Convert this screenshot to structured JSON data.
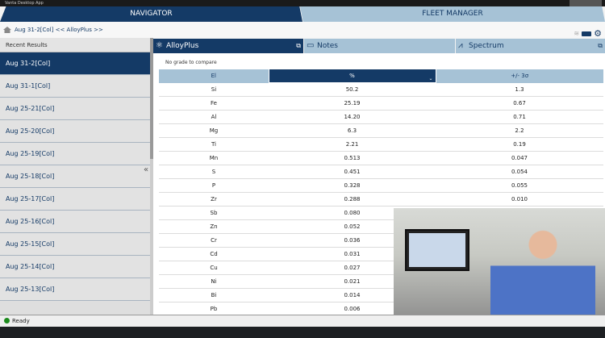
{
  "window": {
    "title": "Vanta Desktop App"
  },
  "tabs": {
    "navigator": "NAVIGATOR",
    "fleet_manager": "FLEET MANAGER"
  },
  "breadcrumb": "Aug 31-2[Col] << AlloyPlus >>",
  "sidebar": {
    "header": "Recent Results",
    "items": [
      "Aug 31-2[Col]",
      "Aug 31-1[Col]",
      "Aug 25-21[Col]",
      "Aug 25-20[Col]",
      "Aug 25-19[Col]",
      "Aug 25-18[Col]",
      "Aug 25-17[Col]",
      "Aug 25-16[Col]",
      "Aug 25-15[Col]",
      "Aug 25-14[Col]",
      "Aug 25-13[Col]"
    ],
    "collapse": "«"
  },
  "panels": {
    "alloyplus": "AlloyPlus",
    "notes": "Notes",
    "spectrum": "Spectrum"
  },
  "main": {
    "grade_msg": "No grade to compare",
    "columns": [
      "El",
      "%",
      "+/- 3σ"
    ],
    "rows": [
      [
        "Si",
        "50.2",
        "1.3"
      ],
      [
        "Fe",
        "25.19",
        "0.67"
      ],
      [
        "Al",
        "14.20",
        "0.71"
      ],
      [
        "Mg",
        "6.3",
        "2.2"
      ],
      [
        "Ti",
        "2.21",
        "0.19"
      ],
      [
        "Mn",
        "0.513",
        "0.047"
      ],
      [
        "S",
        "0.451",
        "0.054"
      ],
      [
        "P",
        "0.328",
        "0.055"
      ],
      [
        "Zr",
        "0.288",
        "0.010"
      ],
      [
        "Sb",
        "0.080",
        ""
      ],
      [
        "Zn",
        "0.052",
        ""
      ],
      [
        "Cr",
        "0.036",
        ""
      ],
      [
        "Cd",
        "0.031",
        ""
      ],
      [
        "Cu",
        "0.027",
        ""
      ],
      [
        "Ni",
        "0.021",
        ""
      ],
      [
        "Bi",
        "0.014",
        ""
      ],
      [
        "Pb",
        "0.006",
        ""
      ]
    ]
  },
  "status": {
    "text": "Ready",
    "color": "#1c8a1c"
  },
  "colors": {
    "primary": "#143a66",
    "secondary": "#a6c2d6"
  }
}
